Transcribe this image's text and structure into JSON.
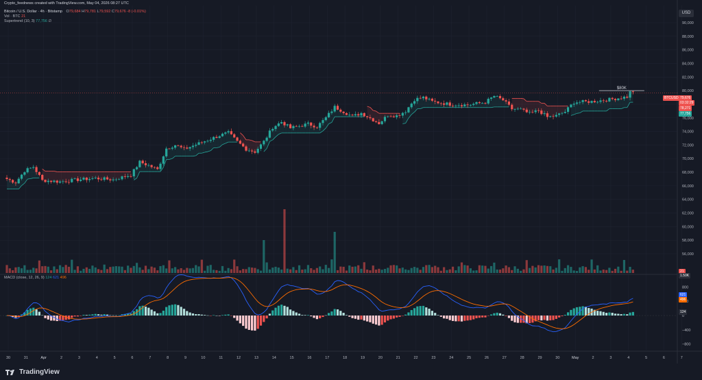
{
  "header": {
    "caption": "Crypto_feednews created with TradingView.com, May 04, 2026 08:27 UTC",
    "symbol": "Bitcoin / U.S. Dollar · 4h · Bitstamp",
    "ohlc": {
      "o_label": "O",
      "o": "79,684",
      "h_label": "H",
      "h": "79,781",
      "l_label": "L",
      "l": "79,592",
      "c_label": "C",
      "c": "79,676",
      "change": "-8 (-0.01%)"
    },
    "vol_label": "Vol · BTC",
    "vol_value": "21",
    "st_label": "Supertrend (10, 3)",
    "st_value": "77,756",
    "st_icon": "∅",
    "macd_label": "MACD (close, 12, 26, 9)",
    "macd_hist": "124",
    "macd_line": "621",
    "macd_signal": "496"
  },
  "usd_button": "USD",
  "price_axis": {
    "ticks": [
      "90,000",
      "88,000",
      "86,000",
      "84,000",
      "82,000",
      "80,000",
      "78,000",
      "76,000",
      "74,000",
      "72,000",
      "70,000",
      "68,000",
      "66,000",
      "64,000",
      "62,000",
      "60,000",
      "58,000",
      "56,000"
    ]
  },
  "macd_axis": {
    "ticks": [
      "800",
      "400",
      "0",
      "−400",
      "−800"
    ]
  },
  "time_axis": {
    "labels": [
      "30",
      "31",
      "Apr",
      "2",
      "3",
      "4",
      "5",
      "6",
      "7",
      "8",
      "9",
      "10",
      "11",
      "12",
      "13",
      "14",
      "15",
      "16",
      "17",
      "18",
      "19",
      "20",
      "21",
      "22",
      "23",
      "24",
      "25",
      "26",
      "27",
      "28",
      "29",
      "30",
      "May",
      "2",
      "3",
      "4",
      "5",
      "6",
      "7"
    ]
  },
  "badges": {
    "symbol": "BTCUSD",
    "price": "79,676",
    "countdown": "03:32:29",
    "supertrend_upper": "78,271",
    "supertrend_lower": "77,756",
    "volume": "21",
    "volume_axis": "1.50K",
    "macd_line": "621",
    "macd_signal": "496",
    "macd_hist": "124"
  },
  "annotation": "$80K",
  "brand": "TradingView",
  "colors": {
    "bg": "#161a25",
    "up": "#26a69a",
    "down": "#ef5350",
    "macd": "#2962ff",
    "signal": "#ff6d00",
    "text": "#b2b5be"
  },
  "chart_data": {
    "type": "candlestick",
    "title": "Bitcoin / U.S. Dollar · 4h · Bitstamp",
    "ylim": [
      54000,
      92000
    ],
    "x_start": "2026-03-30",
    "bars_per_day": 6,
    "anchors": [
      [
        "2026-03-30",
        67000
      ],
      [
        "2026-03-30T12",
        66500
      ],
      [
        "2026-03-31",
        68200
      ],
      [
        "2026-03-31T12",
        68800
      ],
      [
        "2026-04-01",
        66800
      ],
      [
        "2026-04-02",
        66600
      ],
      [
        "2026-04-03",
        66900
      ],
      [
        "2026-04-04",
        67100
      ],
      [
        "2026-04-05",
        66900
      ],
      [
        "2026-04-06",
        67600
      ],
      [
        "2026-04-06T12",
        69500
      ],
      [
        "2026-04-07",
        69000
      ],
      [
        "2026-04-07T12",
        68400
      ],
      [
        "2026-04-08",
        71500
      ],
      [
        "2026-04-08T12",
        72000
      ],
      [
        "2026-04-09",
        71400
      ],
      [
        "2026-04-10",
        72400
      ],
      [
        "2026-04-11",
        73400
      ],
      [
        "2026-04-11T12",
        73800
      ],
      [
        "2026-04-12",
        72500
      ],
      [
        "2026-04-12T12",
        71400
      ],
      [
        "2026-04-13",
        71000
      ],
      [
        "2026-04-13T12",
        72500
      ],
      [
        "2026-04-14",
        74600
      ],
      [
        "2026-04-14T12",
        75400
      ],
      [
        "2026-04-15",
        74500
      ],
      [
        "2026-04-16",
        75100
      ],
      [
        "2026-04-16T12",
        74700
      ],
      [
        "2026-04-17",
        76000
      ],
      [
        "2026-04-17T12",
        77600
      ],
      [
        "2026-04-18",
        76900
      ],
      [
        "2026-04-18T12",
        76200
      ],
      [
        "2026-04-19",
        76700
      ],
      [
        "2026-04-20",
        75200
      ],
      [
        "2026-04-20T12",
        76400
      ],
      [
        "2026-04-21",
        76300
      ],
      [
        "2026-04-21T12",
        77000
      ],
      [
        "2026-04-22",
        78700
      ],
      [
        "2026-04-22T12",
        79000
      ],
      [
        "2026-04-23",
        78400
      ],
      [
        "2026-04-24",
        78000
      ],
      [
        "2026-04-25",
        77900
      ],
      [
        "2026-04-26",
        78300
      ],
      [
        "2026-04-26T12",
        79200
      ],
      [
        "2026-04-27",
        78600
      ],
      [
        "2026-04-27T12",
        77300
      ],
      [
        "2026-04-28",
        77200
      ],
      [
        "2026-04-28T12",
        76600
      ],
      [
        "2026-04-29",
        77100
      ],
      [
        "2026-04-29T12",
        76100
      ],
      [
        "2026-04-30",
        76300
      ],
      [
        "2026-04-30T12",
        76900
      ],
      [
        "2026-05-01",
        78300
      ],
      [
        "2026-05-02",
        78400
      ],
      [
        "2026-05-03",
        78700
      ],
      [
        "2026-05-04",
        79100
      ],
      [
        "2026-05-04T06",
        80100
      ],
      [
        "2026-05-04T10",
        79676
      ]
    ],
    "macd_series": [
      {
        "name": "MACD",
        "color": "#2962ff"
      },
      {
        "name": "Signal",
        "color": "#ff6d00"
      },
      {
        "name": "Histogram"
      }
    ],
    "last_price": 79676,
    "annotation": {
      "label": "$80K",
      "price": 80000
    },
    "volume_spikes": [
      [
        "2026-04-13T12",
        16
      ],
      [
        "2026-04-14T16",
        31
      ],
      [
        "2026-04-17T12",
        20
      ]
    ]
  }
}
